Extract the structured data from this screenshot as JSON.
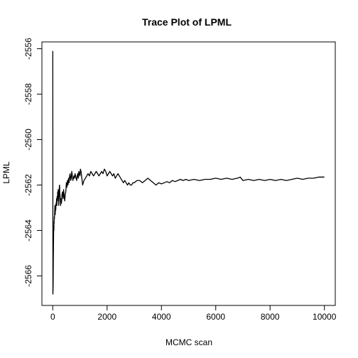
{
  "chart_data": {
    "type": "line",
    "title": "Trace Plot of LPML",
    "xlabel": "MCMC scan",
    "ylabel": "LPML",
    "xlim": [
      -400,
      10400
    ],
    "ylim": [
      -2567.3,
      -2555.7
    ],
    "x_ticks": [
      0,
      2000,
      4000,
      6000,
      8000,
      10000
    ],
    "y_ticks": [
      -2566,
      -2564,
      -2562,
      -2560,
      -2558,
      -2556
    ],
    "grid": false,
    "legend": "none",
    "line_color": "#000000",
    "series": [
      {
        "x": [
          1,
          5,
          10,
          15,
          20,
          25,
          30,
          35,
          40,
          45,
          50,
          55,
          60,
          70,
          80,
          90,
          100,
          110,
          120,
          130,
          140,
          150,
          160,
          170,
          180,
          190,
          200,
          210,
          220,
          230,
          240,
          250,
          260,
          270,
          280,
          290,
          300,
          320,
          340,
          360,
          380,
          400,
          420,
          440,
          460,
          480,
          500,
          520,
          540,
          560,
          580,
          600,
          620,
          640,
          660,
          680,
          700,
          720,
          740,
          760,
          780,
          800,
          820,
          840,
          860,
          880,
          900,
          920,
          940,
          960,
          980,
          1000,
          1020,
          1040,
          1060,
          1080,
          1100,
          1150,
          1200,
          1250,
          1300,
          1350,
          1400,
          1450,
          1500,
          1550,
          1600,
          1650,
          1700,
          1750,
          1800,
          1850,
          1900,
          1950,
          2000,
          2050,
          2100,
          2150,
          2200,
          2250,
          2300,
          2350,
          2400,
          2450,
          2500,
          2550,
          2600,
          2650,
          2700,
          2750,
          2800,
          2850,
          2900,
          2950,
          3000,
          3100,
          3200,
          3300,
          3400,
          3500,
          3600,
          3700,
          3800,
          3900,
          4000,
          4100,
          4200,
          4300,
          4400,
          4500,
          4600,
          4700,
          4800,
          4900,
          5000,
          5200,
          5400,
          5600,
          5800,
          6000,
          6200,
          6400,
          6600,
          6800,
          6900,
          7000,
          7200,
          7400,
          7600,
          7800,
          8000,
          8200,
          8400,
          8600,
          8800,
          9000,
          9200,
          9400,
          9600,
          9800,
          10000
        ],
        "y": [
          -2556.1,
          -2566.8,
          -2566.6,
          -2566.2,
          -2565.3,
          -2564.8,
          -2564.2,
          -2563.8,
          -2564.0,
          -2563.6,
          -2563.7,
          -2563.4,
          -2563.5,
          -2563.2,
          -2562.9,
          -2563.3,
          -2562.9,
          -2563.1,
          -2562.8,
          -2562.9,
          -2562.6,
          -2562.9,
          -2562.5,
          -2562.7,
          -2562.3,
          -2562.5,
          -2562.2,
          -2562.6,
          -2562.9,
          -2562.6,
          -2562.1,
          -2562.0,
          -2562.4,
          -2562.5,
          -2562.7,
          -2562.9,
          -2562.6,
          -2562.8,
          -2562.4,
          -2562.3,
          -2562.6,
          -2562.2,
          -2562.5,
          -2562.7,
          -2562.4,
          -2562.3,
          -2561.9,
          -2562.1,
          -2561.8,
          -2562.0,
          -2561.7,
          -2561.9,
          -2561.6,
          -2561.5,
          -2561.8,
          -2561.7,
          -2561.4,
          -2561.6,
          -2561.8,
          -2561.7,
          -2561.6,
          -2561.7,
          -2561.5,
          -2561.6,
          -2561.7,
          -2561.8,
          -2561.6,
          -2561.5,
          -2561.7,
          -2561.4,
          -2561.5,
          -2561.6,
          -2561.3,
          -2561.4,
          -2561.6,
          -2561.8,
          -2562.0,
          -2561.8,
          -2561.7,
          -2561.6,
          -2561.5,
          -2561.6,
          -2561.4,
          -2561.5,
          -2561.6,
          -2561.5,
          -2561.4,
          -2561.5,
          -2561.6,
          -2561.5,
          -2561.4,
          -2561.5,
          -2561.3,
          -2561.4,
          -2561.6,
          -2561.5,
          -2561.4,
          -2561.5,
          -2561.6,
          -2561.5,
          -2561.7,
          -2561.6,
          -2561.5,
          -2561.6,
          -2561.7,
          -2561.8,
          -2561.9,
          -2561.8,
          -2561.9,
          -2562.0,
          -2561.9,
          -2562.0,
          -2562.0,
          -2561.9,
          -2561.9,
          -2561.8,
          -2561.8,
          -2561.9,
          -2561.8,
          -2561.7,
          -2561.8,
          -2561.9,
          -2562.0,
          -2561.9,
          -2561.95,
          -2561.9,
          -2561.85,
          -2561.9,
          -2561.8,
          -2561.85,
          -2561.8,
          -2561.75,
          -2561.8,
          -2561.75,
          -2561.8,
          -2561.75,
          -2561.8,
          -2561.75,
          -2561.75,
          -2561.7,
          -2561.75,
          -2561.7,
          -2561.75,
          -2561.7,
          -2561.65,
          -2561.8,
          -2561.75,
          -2561.8,
          -2561.75,
          -2561.8,
          -2561.75,
          -2561.8,
          -2561.75,
          -2561.8,
          -2561.75,
          -2561.7,
          -2561.75,
          -2561.7,
          -2561.7,
          -2561.65,
          -2561.65
        ]
      }
    ]
  }
}
